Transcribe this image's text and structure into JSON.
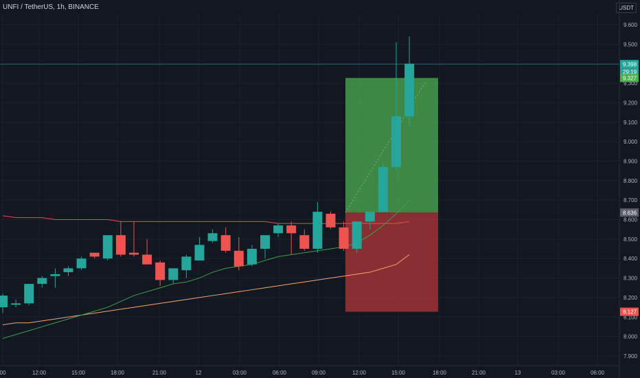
{
  "header": {
    "symbol_title": "UNFI / TetherUS, 1h, BINANCE",
    "currency_label": "USDT"
  },
  "price_tags": {
    "last_price": "9.398",
    "countdown": "29:19",
    "target_price": "9.327",
    "entry_price": "8.636",
    "stop_price": "8.127"
  },
  "colors": {
    "background": "#131722",
    "up_candle": "#26a69a",
    "down_candle": "#ef5350",
    "profit_zone": "#4caf50",
    "loss_zone": "#b2373a",
    "ma_fast": "#3fa04a",
    "ma_slow": "#f6a672",
    "ma_long": "#e3524e"
  },
  "chart_data": {
    "type": "candlestick",
    "ylim": [
      7.85,
      9.7
    ],
    "y_ticks": [
      "9.600",
      "9.500",
      "9.300",
      "9.200",
      "9.100",
      "9.000",
      "8.900",
      "8.800",
      "8.700",
      "8.600",
      "8.500",
      "8.400",
      "8.300",
      "8.200",
      "8.100",
      "8.000",
      "7.900"
    ],
    "x_ticks": [
      "00",
      "12:00",
      "15:00",
      "18:00",
      "21:00",
      "12",
      "03:00",
      "06:00",
      "09:00",
      "12:00",
      "15:00",
      "18:00",
      "21:00",
      "13",
      "03:00",
      "06:00"
    ],
    "candles": [
      {
        "o": 8.15,
        "h": 8.22,
        "l": 8.12,
        "c": 8.21
      },
      {
        "o": 8.17,
        "h": 8.19,
        "l": 8.15,
        "c": 8.17
      },
      {
        "o": 8.17,
        "h": 8.27,
        "l": 8.16,
        "c": 8.27
      },
      {
        "o": 8.27,
        "h": 8.31,
        "l": 8.25,
        "c": 8.3
      },
      {
        "o": 8.31,
        "h": 8.35,
        "l": 8.25,
        "c": 8.32
      },
      {
        "o": 8.33,
        "h": 8.36,
        "l": 8.31,
        "c": 8.35
      },
      {
        "o": 8.35,
        "h": 8.41,
        "l": 8.34,
        "c": 8.4
      },
      {
        "o": 8.43,
        "h": 8.43,
        "l": 8.4,
        "c": 8.41
      },
      {
        "o": 8.4,
        "h": 8.52,
        "l": 8.39,
        "c": 8.52
      },
      {
        "o": 8.52,
        "h": 8.59,
        "l": 8.41,
        "c": 8.42
      },
      {
        "o": 8.43,
        "h": 8.59,
        "l": 8.41,
        "c": 8.42
      },
      {
        "o": 8.42,
        "h": 8.5,
        "l": 8.37,
        "c": 8.37
      },
      {
        "o": 8.38,
        "h": 8.39,
        "l": 8.26,
        "c": 8.29
      },
      {
        "o": 8.29,
        "h": 8.35,
        "l": 8.27,
        "c": 8.35
      },
      {
        "o": 8.34,
        "h": 8.42,
        "l": 8.3,
        "c": 8.41
      },
      {
        "o": 8.39,
        "h": 8.51,
        "l": 8.39,
        "c": 8.47
      },
      {
        "o": 8.49,
        "h": 8.55,
        "l": 8.48,
        "c": 8.53
      },
      {
        "o": 8.52,
        "h": 8.56,
        "l": 8.43,
        "c": 8.44
      },
      {
        "o": 8.44,
        "h": 8.51,
        "l": 8.34,
        "c": 8.36
      },
      {
        "o": 8.37,
        "h": 8.47,
        "l": 8.36,
        "c": 8.45
      },
      {
        "o": 8.45,
        "h": 8.52,
        "l": 8.4,
        "c": 8.52
      },
      {
        "o": 8.53,
        "h": 8.58,
        "l": 8.51,
        "c": 8.57
      },
      {
        "o": 8.57,
        "h": 8.59,
        "l": 8.42,
        "c": 8.53
      },
      {
        "o": 8.52,
        "h": 8.55,
        "l": 8.44,
        "c": 8.45
      },
      {
        "o": 8.45,
        "h": 8.69,
        "l": 8.43,
        "c": 8.64
      },
      {
        "o": 8.63,
        "h": 8.64,
        "l": 8.55,
        "c": 8.56
      },
      {
        "o": 8.56,
        "h": 8.59,
        "l": 8.44,
        "c": 8.45
      },
      {
        "o": 8.45,
        "h": 8.59,
        "l": 8.43,
        "c": 8.59
      },
      {
        "o": 8.59,
        "h": 8.64,
        "l": 8.55,
        "c": 8.64
      },
      {
        "o": 8.64,
        "h": 8.89,
        "l": 8.64,
        "c": 8.87
      },
      {
        "o": 8.87,
        "h": 9.51,
        "l": 8.85,
        "c": 9.13
      },
      {
        "o": 9.13,
        "h": 9.54,
        "l": 9.08,
        "c": 9.4
      }
    ],
    "position": {
      "entry": 8.636,
      "target": 9.327,
      "stop": 8.127
    },
    "ma_fast": [
      7.99,
      8.01,
      8.03,
      8.05,
      8.07,
      8.09,
      8.11,
      8.13,
      8.15,
      8.18,
      8.21,
      8.23,
      8.25,
      8.27,
      8.28,
      8.3,
      8.33,
      8.35,
      8.36,
      8.37,
      8.39,
      8.41,
      8.42,
      8.43,
      8.44,
      8.45,
      8.46,
      8.48,
      8.52,
      8.57,
      8.63,
      8.7
    ],
    "ma_slow": [
      8.06,
      8.07,
      8.07,
      8.08,
      8.09,
      8.1,
      8.11,
      8.12,
      8.13,
      8.14,
      8.15,
      8.16,
      8.17,
      8.18,
      8.19,
      8.2,
      8.21,
      8.22,
      8.23,
      8.24,
      8.25,
      8.26,
      8.27,
      8.28,
      8.29,
      8.3,
      8.31,
      8.32,
      8.33,
      8.35,
      8.37,
      8.42
    ],
    "ma_long": [
      8.62,
      8.61,
      8.61,
      8.61,
      8.6,
      8.6,
      8.6,
      8.6,
      8.6,
      8.59,
      8.59,
      8.59,
      8.59,
      8.59,
      8.59,
      8.59,
      8.59,
      8.59,
      8.59,
      8.59,
      8.59,
      8.58,
      8.58,
      8.58,
      8.58,
      8.58,
      8.58,
      8.58,
      8.58,
      8.58,
      8.58,
      8.59
    ]
  }
}
